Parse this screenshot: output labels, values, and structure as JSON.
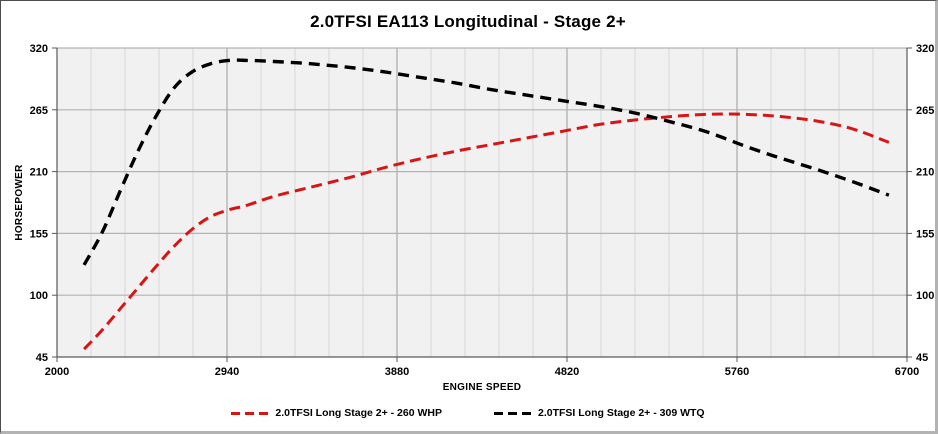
{
  "frame": {
    "background": "#ffffff",
    "border_dark": "#4d4d4d",
    "border_light": "#b3b3b3"
  },
  "chart_data": {
    "type": "line",
    "title": "2.0TFSI EA113 Longitudinal - Stage 2+",
    "xlabel": "ENGINE SPEED",
    "ylabel": "HORSEPOWER",
    "xlim": [
      2000,
      6700
    ],
    "ylim": [
      45,
      320
    ],
    "x_ticks": [
      2000,
      2940,
      3880,
      4820,
      5760,
      6700
    ],
    "y_ticks": [
      45,
      100,
      155,
      210,
      265,
      320
    ],
    "x_minor_step": 188,
    "grid": {
      "horizontal": "major-only",
      "vertical": "major-and-minor"
    },
    "legend_position": "bottom-center",
    "right_axis_mirrors_left": true,
    "plot_bg": "#f1f1f1",
    "grid_major_color": "#a9a9a9",
    "grid_minor_color": "#d7d7d7",
    "grid_h_color": "#b3b3b3",
    "axis_color": "#595959",
    "tick_label_color": "#000000",
    "series": [
      {
        "name": "2.0TFSI Long Stage 2+ - 260 WHP",
        "color": "#d81414",
        "dash": [
          11,
          6
        ],
        "width": 3,
        "x": [
          2150,
          2250,
          2350,
          2450,
          2550,
          2650,
          2750,
          2850,
          2950,
          3050,
          3200,
          3400,
          3600,
          3800,
          4000,
          4200,
          4400,
          4600,
          4800,
          5000,
          5200,
          5400,
          5600,
          5800,
          6000,
          6200,
          6400,
          6600
        ],
        "y": [
          52,
          69,
          88,
          107,
          126,
          144,
          159,
          170,
          176,
          180,
          188,
          196,
          204,
          213,
          221,
          228,
          234,
          240,
          246,
          252,
          256,
          259,
          261,
          261,
          259,
          255,
          248,
          236
        ]
      },
      {
        "name": "2.0TFSI Long Stage 2+ - 309 WTQ",
        "color": "#000000",
        "dash": [
          11,
          7
        ],
        "width": 3.4,
        "x": [
          2150,
          2250,
          2350,
          2450,
          2550,
          2650,
          2750,
          2850,
          2950,
          3050,
          3200,
          3400,
          3600,
          3800,
          4000,
          4200,
          4400,
          4600,
          4800,
          5000,
          5200,
          5400,
          5600,
          5800,
          6000,
          6200,
          6400,
          6600
        ],
        "y": [
          127,
          156,
          193,
          229,
          260,
          285,
          299,
          306,
          309,
          309,
          308,
          306,
          303,
          299,
          294,
          289,
          283,
          278,
          273,
          268,
          262,
          254,
          245,
          233,
          222,
          212,
          201,
          189
        ]
      }
    ]
  }
}
